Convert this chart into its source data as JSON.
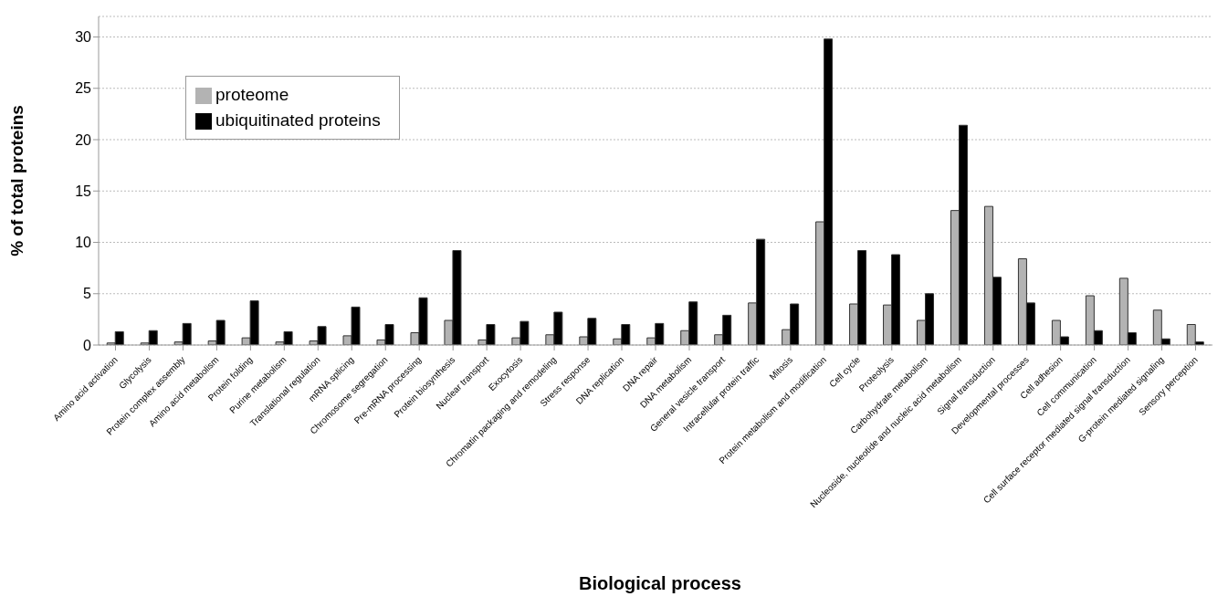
{
  "chart_data": {
    "type": "bar",
    "xlabel": "Biological process",
    "ylabel": "% of total proteins",
    "categories": [
      "Amino acid activation",
      "Glycolysis",
      "Protein complex assembly",
      "Amino acid metabolism",
      "Protein folding",
      "Purine metabolism",
      "Translational regulation",
      "mRNA splicing",
      "Chromosome segregation",
      "Pre-mRNA processing",
      "Protein biosynthesis",
      "Nuclear transport",
      "Exocytosis",
      "Chromatin packaging and remodeling",
      "Stress response",
      "DNA replication",
      "DNA repair",
      "DNA metabolism",
      "General vesicle transport",
      "Intracellular protein traffic",
      "Mitosis",
      "Protein metabolism and modification",
      "Cell cycle",
      "Proteolysis",
      "Carbohydrate metabolism",
      "Nucleoside, nucleotide and nucleic acid metabolism",
      "Signal transduction",
      "Developmental processes",
      "Cell adhesion",
      "Cell communication",
      "Cell surface receptor mediated signal transduction",
      "G-protein mediated signaling",
      "Sensory perception"
    ],
    "series": [
      {
        "name": "proteome",
        "color": "#b3b3b3",
        "values": [
          0.2,
          0.2,
          0.3,
          0.4,
          0.7,
          0.3,
          0.4,
          0.9,
          0.5,
          1.2,
          2.4,
          0.5,
          0.7,
          1.0,
          0.8,
          0.6,
          0.7,
          1.4,
          1.0,
          4.1,
          1.5,
          12.0,
          4.0,
          3.9,
          2.4,
          13.1,
          13.5,
          8.4,
          2.4,
          4.8,
          6.5,
          3.4,
          2.0
        ]
      },
      {
        "name": "ubiquitinated proteins",
        "color": "#000000",
        "values": [
          1.3,
          1.4,
          2.1,
          2.4,
          4.3,
          1.3,
          1.8,
          3.7,
          2.0,
          4.6,
          9.2,
          2.0,
          2.3,
          3.2,
          2.6,
          2.0,
          2.1,
          4.2,
          2.9,
          10.3,
          4.0,
          29.8,
          9.2,
          8.8,
          5.0,
          21.4,
          6.6,
          4.1,
          0.8,
          1.4,
          1.2,
          0.6,
          0.3
        ]
      }
    ],
    "ylim": [
      0,
      32
    ],
    "yticks": [
      0,
      5,
      10,
      15,
      20,
      25,
      30
    ],
    "grid": "y",
    "legend": "top left"
  }
}
